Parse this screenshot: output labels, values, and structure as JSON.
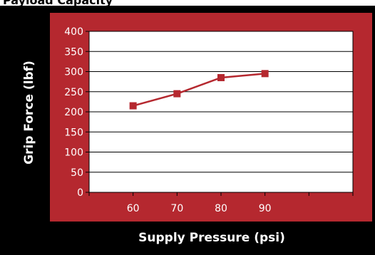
{
  "chart_data": {
    "type": "line",
    "title": "Payload Capacity",
    "xlabel": "Supply Pressure (psi)",
    "ylabel": "Grip Force (lbf)",
    "x": [
      60,
      70,
      80,
      90
    ],
    "xlim": [
      50,
      110
    ],
    "x_ticks": [
      "60",
      "70",
      "80",
      "90"
    ],
    "ylim": [
      0,
      400
    ],
    "y_ticks": [
      "0",
      "50",
      "100",
      "150",
      "200",
      "250",
      "300",
      "350",
      "400"
    ],
    "series": [
      {
        "values": [
          215,
          245,
          285,
          295
        ]
      }
    ],
    "grid": true,
    "legend": "none",
    "colors": {
      "frame": "#000000",
      "panel": "#b5282f",
      "plot_bg": "#ffffff",
      "line": "#b5282f",
      "marker": "#b5282f",
      "gridline": "#000000",
      "tick_text": "#ffffff"
    }
  }
}
